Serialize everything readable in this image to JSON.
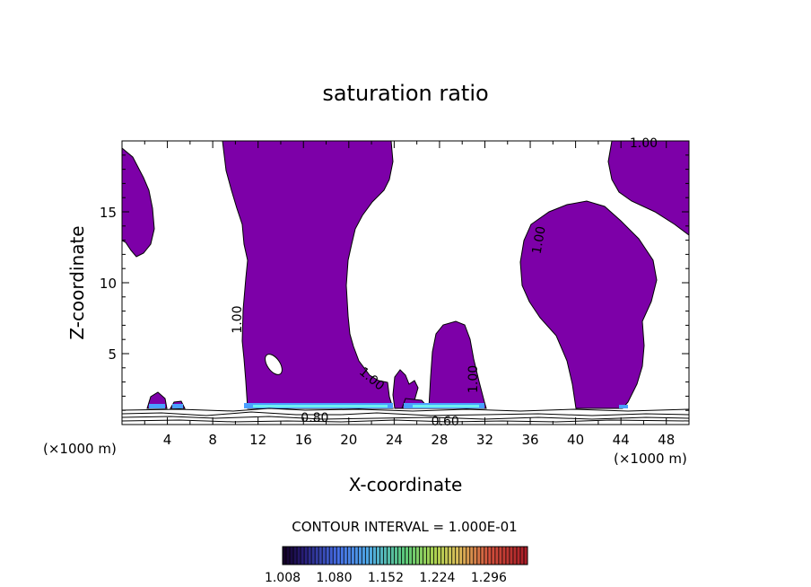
{
  "chart_data": {
    "type": "heatmap",
    "title": "saturation ratio",
    "xlabel": "X-coordinate",
    "ylabel": "Z-coordinate",
    "x_unit_left": "(×1000 m)",
    "x_unit_right": "(×1000 m)",
    "xlim": [
      0,
      50
    ],
    "ylim": [
      0,
      20
    ],
    "x_ticks": [
      4,
      8,
      12,
      16,
      20,
      24,
      28,
      32,
      36,
      40,
      44,
      48
    ],
    "y_ticks": [
      5,
      10,
      15
    ],
    "contour_labels": [
      {
        "text": "1.00",
        "x": 46,
        "z": 19.8,
        "angle": 0
      },
      {
        "text": "1.00",
        "x": 36.8,
        "z": 13,
        "angle": -80
      },
      {
        "text": "1.00",
        "x": 10.2,
        "z": 7.4,
        "angle": -90
      },
      {
        "text": "1.00",
        "x": 22,
        "z": 3.2,
        "angle": 40
      },
      {
        "text": "1.00",
        "x": 31,
        "z": 3.2,
        "angle": -90
      },
      {
        "text": "0.80",
        "x": 17,
        "z": 0.45,
        "angle": 0
      },
      {
        "text": "0.60",
        "x": 28.5,
        "z": 0.2,
        "angle": 0
      }
    ],
    "contour_interval_text": "CONTOUR INTERVAL = 1.000E-01",
    "colorbar": {
      "min": 1.008,
      "max": 1.35,
      "tick_labels": [
        "1.008",
        "1.080",
        "1.152",
        "1.224",
        "1.296"
      ],
      "tick_values": [
        1.008,
        1.08,
        1.152,
        1.224,
        1.296
      ]
    },
    "fill_color": "#7d00a8",
    "grid": false
  }
}
